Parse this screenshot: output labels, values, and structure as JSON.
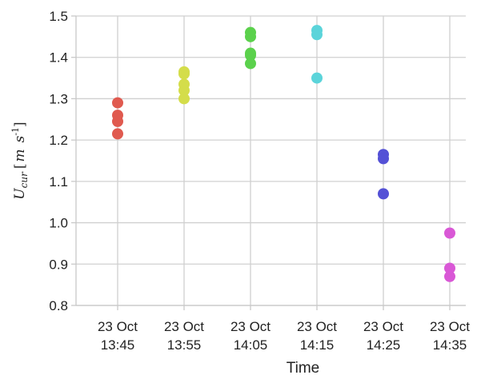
{
  "chart_data": {
    "type": "scatter",
    "title": "",
    "xlabel": "Time",
    "ylabel": {
      "symbol": "U",
      "subscript": "cur",
      "units_open": "[",
      "unit_m": "m",
      "unit_s": "s",
      "unit_exp": "-1",
      "units_close": "]"
    },
    "ylim": [
      0.8,
      1.5
    ],
    "yticks": [
      0.8,
      0.9,
      1.0,
      1.1,
      1.2,
      1.3,
      1.4,
      1.5
    ],
    "ytick_labels": [
      "0.8",
      "0.9",
      "1.0",
      "1.1",
      "1.2",
      "1.3",
      "1.4",
      "1.5"
    ],
    "grid": true,
    "categories": [
      {
        "date": "23 Oct",
        "time": "13:45"
      },
      {
        "date": "23 Oct",
        "time": "13:55"
      },
      {
        "date": "23 Oct",
        "time": "14:05"
      },
      {
        "date": "23 Oct",
        "time": "14:15"
      },
      {
        "date": "23 Oct",
        "time": "14:25"
      },
      {
        "date": "23 Oct",
        "time": "14:35"
      }
    ],
    "series": [
      {
        "category_index": 0,
        "color": "#e05a4f",
        "values": [
          1.29,
          1.26,
          1.245,
          1.215
        ]
      },
      {
        "category_index": 1,
        "color": "#d4dd4a",
        "values": [
          1.365,
          1.36,
          1.335,
          1.32,
          1.3
        ]
      },
      {
        "category_index": 2,
        "color": "#5bd14c",
        "values": [
          1.46,
          1.45,
          1.41,
          1.405,
          1.385
        ]
      },
      {
        "category_index": 3,
        "color": "#5bd4da",
        "values": [
          1.465,
          1.455,
          1.35
        ]
      },
      {
        "category_index": 4,
        "color": "#5451d6",
        "values": [
          1.165,
          1.155,
          1.07
        ]
      },
      {
        "category_index": 5,
        "color": "#d958d6",
        "values": [
          0.975,
          0.89,
          0.87
        ]
      }
    ]
  }
}
